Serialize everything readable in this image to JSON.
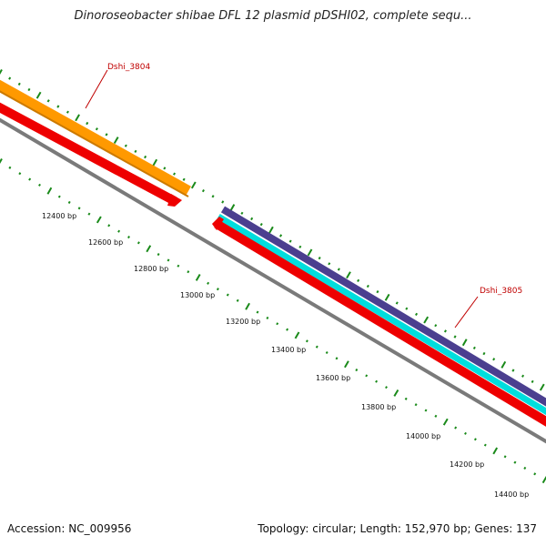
{
  "title": "Dinoroseobacter shibae DFL 12 plasmid pDSHI02, complete sequ...",
  "footer": {
    "accession": "Accession: NC_009956",
    "summary": "Topology: circular; Length: 152,970 bp; Genes: 137"
  },
  "genes": [
    {
      "label": "Dshi_3804"
    },
    {
      "label": "Dshi_3805"
    }
  ],
  "ruler_labels": [
    "12400 bp",
    "12600 bp",
    "12800 bp",
    "13000 bp",
    "13200 bp",
    "13400 bp",
    "13600 bp",
    "13800 bp",
    "14000 bp",
    "14200 bp",
    "14400 bp"
  ],
  "colors": {
    "orange": "#ff9900",
    "red": "#ee0000",
    "navy": "#4b3f8f",
    "cyan": "#00dddd",
    "gray": "#7a7a7a",
    "tick": "#1a8a1a",
    "label_red": "#c00000"
  }
}
